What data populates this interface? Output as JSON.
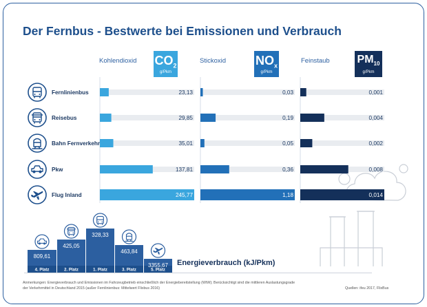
{
  "title": "Der Fernbus - Bestwerte bei Emissionen und Verbrauch",
  "colors": {
    "co2": "#3aa6de",
    "nox": "#2270b8",
    "pm": "#14305a",
    "track": "#e9ecf0",
    "icon": "#1d4f8c",
    "frame": "#2c5fa0"
  },
  "headers": {
    "co2": {
      "name": "Kohlendioxid",
      "formula": "CO",
      "sub": "2",
      "unit": "g/Pkm"
    },
    "nox": {
      "name": "Stickoxid",
      "formula": "NO",
      "sub": "x",
      "unit": "g/Pkm"
    },
    "pm": {
      "name": "Feinstaub",
      "formula": "PM",
      "sub": "10",
      "unit": "g/Pkm"
    }
  },
  "chart_data": [
    {
      "type": "bar",
      "orientation": "horizontal",
      "categories": [
        "Fernlinienbus",
        "Reisebus",
        "Bahn Fernverkehr",
        "Pkw",
        "Flug Inland"
      ],
      "icons": [
        "bus-icon",
        "coach-icon",
        "train-icon",
        "car-icon",
        "plane-icon"
      ],
      "series": [
        {
          "name": "Kohlendioxid",
          "values": [
            23.13,
            29.85,
            35.01,
            137.81,
            245.77
          ],
          "labels": [
            "23,13",
            "29,85",
            "35,01",
            "137,81",
            "245,77"
          ]
        },
        {
          "name": "Stickoxid",
          "values": [
            0.03,
            0.19,
            0.05,
            0.36,
            1.18
          ],
          "labels": [
            "0,03",
            "0,19",
            "0,05",
            "0,36",
            "1,18"
          ]
        },
        {
          "name": "Feinstaub",
          "values": [
            0.001,
            0.004,
            0.002,
            0.008,
            0.014
          ],
          "labels": [
            "0,001",
            "0,004",
            "0,002",
            "0,008",
            "0,014"
          ]
        }
      ]
    },
    {
      "type": "bar",
      "title": "Energieverbrauch (kJ/Pkm)",
      "categories": [
        "4. Platz",
        "2. Platz",
        "1. Platz",
        "3. Platz",
        "5. Platz"
      ],
      "icons": [
        "car-icon",
        "coach-icon",
        "bus-icon",
        "train-icon",
        "plane-icon"
      ],
      "values": [
        809.61,
        425.05,
        328.33,
        463.84,
        3355.67
      ],
      "labels": [
        "809,61",
        "425,05",
        "328,33",
        "463,84",
        "3355,67"
      ]
    }
  ],
  "footnote": {
    "line1": "Anmerkungen: Energieverbrauch und Emissionen im Fahrzeugbetrieb einschließlich der Energiebereitstellung (WtW); Berücksichtigt sind die mittleren Auslastungsgrade",
    "line2": "der Verkehrmittel in Deutschland 2015 (außer Fernlinienbus: Mittelwert Flixbus 2016)",
    "source": "Quellen: ifeu 2017, FlixBus"
  }
}
